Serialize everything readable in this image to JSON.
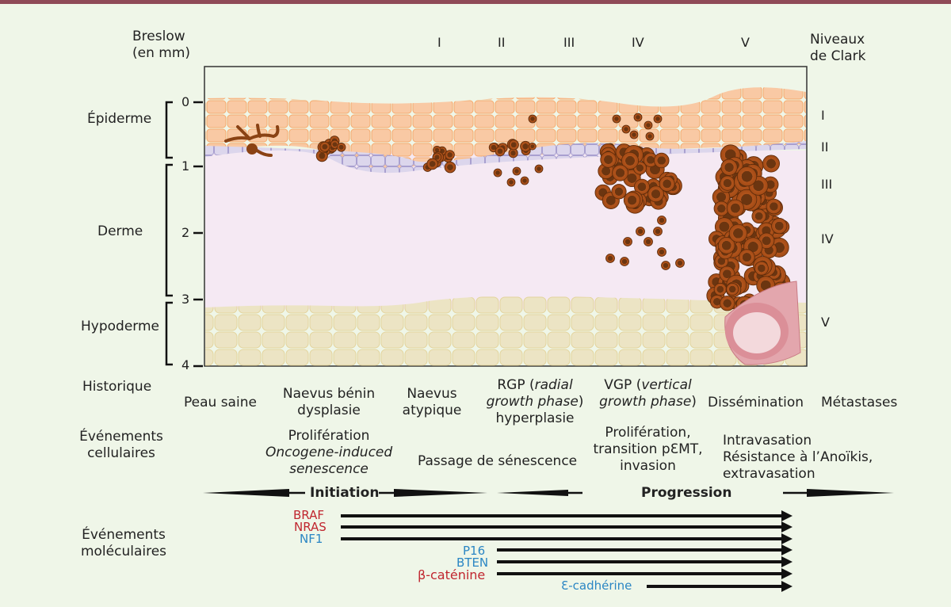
{
  "colors": {
    "top_bar": "#8f4a57",
    "background": "#eff6e8",
    "epidermis": "#f9c9a4",
    "basal_layer": "#dcd6ec",
    "dermis": "#f5e9f3",
    "hypodermis": "#ece4c4",
    "melanocyte": "#7a3d12",
    "oncogene_red": "#c0262f",
    "suppressor_blue": "#2b86c4"
  },
  "header": {
    "breslow_line1": "Breslow",
    "breslow_line2": "(en mm)",
    "clark_line1": "Niveaux",
    "clark_line2": "de Clark",
    "clark_top": [
      "I",
      "II",
      "III",
      "IV",
      "V"
    ],
    "clark_right": [
      "I",
      "II",
      "III",
      "IV",
      "V"
    ]
  },
  "depth_scale": {
    "ticks": [
      "0",
      "1",
      "2",
      "3",
      "4"
    ],
    "layers": [
      "Épiderme",
      "Derme",
      "Hypoderme"
    ]
  },
  "rows": {
    "historique_label": "Historique",
    "cellular_label_1": "Événements",
    "cellular_label_2": "cellulaires",
    "molecular_label_1": "Événements",
    "molecular_label_2": "moléculaires"
  },
  "historique": {
    "peau_saine": "Peau saine",
    "naevus_benin_1": "Naevus bénin",
    "naevus_benin_2": "dysplasie",
    "naevus_atypique_1": "Naevus",
    "naevus_atypique_2": "atypique",
    "rgp_1a": "RGP (",
    "rgp_1b": "radial",
    "rgp_2a": "growth phase",
    "rgp_2b": ")",
    "rgp_3": "hyperplasie",
    "vgp_1a": "VGP (",
    "vgp_1b": "vertical",
    "vgp_2a": "growth phase",
    "vgp_2b": ")",
    "dissemination": "Dissémination",
    "metastases": "Métastases"
  },
  "cellular": {
    "proliferation": "Prolifération",
    "oncogene_1": "Oncogene-induced",
    "oncogene_2": "senescence",
    "passage": "Passage de sénescence",
    "vgp_1": "Prolifération,",
    "vgp_2": "transition pƐMT,",
    "vgp_3": "invasion",
    "diss_1": "Intravasation",
    "diss_2": "Résistance à l’Anoïkis,",
    "diss_3": "extravasation"
  },
  "phases": {
    "initiation": "Initiation",
    "progression": "Progression"
  },
  "molecular": {
    "genes": [
      {
        "name": "BRAF",
        "type": "oncogene"
      },
      {
        "name": "NRAS",
        "type": "oncogene"
      },
      {
        "name": "NF1",
        "type": "suppressor"
      },
      {
        "name": "P16",
        "type": "suppressor"
      },
      {
        "name": "BTEN",
        "type": "suppressor"
      },
      {
        "name": "β-caténine",
        "type": "oncogene"
      },
      {
        "name": "Ɛ-cadhérine",
        "type": "suppressor"
      }
    ]
  }
}
